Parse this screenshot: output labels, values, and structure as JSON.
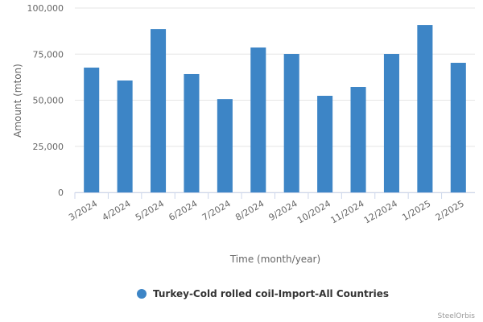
{
  "chart_data": {
    "type": "bar",
    "y_axis_label": "Amount (mton)",
    "x_axis_label": "Time (month/year)",
    "categories": [
      "3/2024",
      "4/2024",
      "5/2024",
      "6/2024",
      "7/2024",
      "8/2024",
      "9/2024",
      "10/2024",
      "11/2024",
      "12/2024",
      "1/2025",
      "2/2025"
    ],
    "series": [
      {
        "name": "Turkey-Cold rolled coil-Import-All Countries",
        "color": "#3d85c6",
        "values": [
          67700,
          60700,
          88600,
          64200,
          50600,
          78600,
          75100,
          52400,
          57200,
          75100,
          90800,
          70300
        ]
      }
    ],
    "ylim": [
      0,
      100000
    ],
    "yticks": [
      0,
      {
        "value": 25000,
        "label": "25,000"
      },
      {
        "value": 50000,
        "label": "50,000"
      },
      {
        "value": 75000,
        "label": "75,000"
      },
      {
        "value": 100000,
        "label": "100,000"
      }
    ],
    "grid": true,
    "legend": "bottom",
    "credit": "SteelOrbis"
  }
}
